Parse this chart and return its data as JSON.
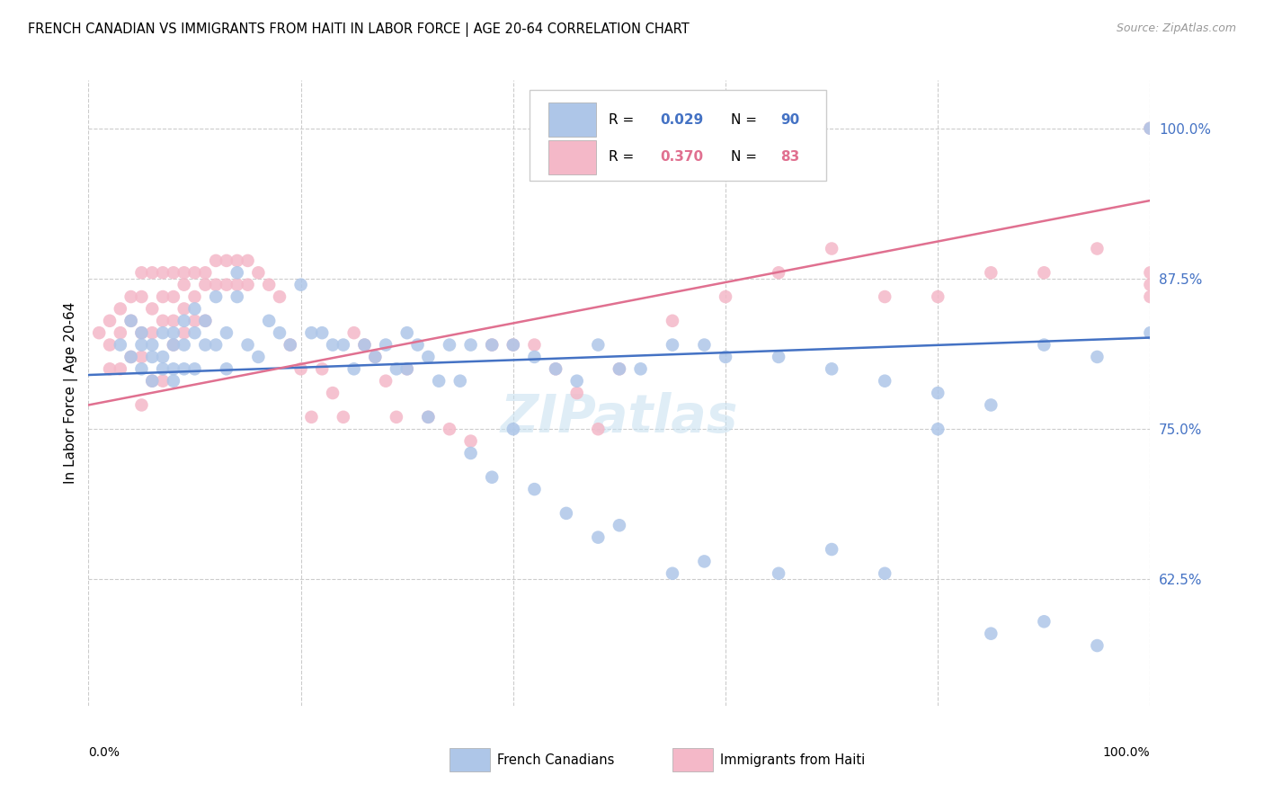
{
  "title": "FRENCH CANADIAN VS IMMIGRANTS FROM HAITI IN LABOR FORCE | AGE 20-64 CORRELATION CHART",
  "source": "Source: ZipAtlas.com",
  "ylabel": "In Labor Force | Age 20-64",
  "xlim": [
    0.0,
    1.0
  ],
  "ylim": [
    0.52,
    1.04
  ],
  "r_blue": 0.029,
  "n_blue": 90,
  "r_pink": 0.37,
  "n_pink": 83,
  "blue_color": "#aec6e8",
  "pink_color": "#f4b8c8",
  "blue_line_color": "#4472c4",
  "pink_line_color": "#e07090",
  "ytick_vals": [
    0.625,
    0.75,
    0.875,
    1.0
  ],
  "ytick_labels": [
    "62.5%",
    "75.0%",
    "87.5%",
    "100.0%"
  ],
  "blue_x": [
    0.03,
    0.04,
    0.04,
    0.05,
    0.05,
    0.05,
    0.06,
    0.06,
    0.06,
    0.07,
    0.07,
    0.07,
    0.08,
    0.08,
    0.08,
    0.08,
    0.09,
    0.09,
    0.09,
    0.1,
    0.1,
    0.1,
    0.11,
    0.11,
    0.12,
    0.12,
    0.13,
    0.13,
    0.14,
    0.14,
    0.15,
    0.16,
    0.17,
    0.18,
    0.19,
    0.2,
    0.21,
    0.22,
    0.23,
    0.24,
    0.25,
    0.26,
    0.27,
    0.28,
    0.29,
    0.3,
    0.3,
    0.31,
    0.32,
    0.33,
    0.34,
    0.35,
    0.36,
    0.38,
    0.4,
    0.42,
    0.44,
    0.46,
    0.48,
    0.5,
    0.52,
    0.55,
    0.58,
    0.6,
    0.65,
    0.7,
    0.75,
    0.8,
    0.85,
    0.9,
    0.95,
    1.0,
    0.32,
    0.36,
    0.38,
    0.4,
    0.42,
    0.45,
    0.48,
    0.5,
    0.55,
    0.58,
    0.65,
    0.7,
    0.75,
    0.8,
    0.85,
    0.9,
    0.95,
    1.0
  ],
  "blue_y": [
    0.82,
    0.84,
    0.81,
    0.82,
    0.8,
    0.83,
    0.82,
    0.81,
    0.79,
    0.83,
    0.81,
    0.8,
    0.83,
    0.82,
    0.8,
    0.79,
    0.84,
    0.82,
    0.8,
    0.85,
    0.83,
    0.8,
    0.84,
    0.82,
    0.86,
    0.82,
    0.83,
    0.8,
    0.88,
    0.86,
    0.82,
    0.81,
    0.84,
    0.83,
    0.82,
    0.87,
    0.83,
    0.83,
    0.82,
    0.82,
    0.8,
    0.82,
    0.81,
    0.82,
    0.8,
    0.83,
    0.8,
    0.82,
    0.81,
    0.79,
    0.82,
    0.79,
    0.82,
    0.82,
    0.82,
    0.81,
    0.8,
    0.79,
    0.82,
    0.8,
    0.8,
    0.82,
    0.82,
    0.81,
    0.81,
    0.8,
    0.79,
    0.78,
    0.77,
    0.82,
    0.81,
    0.83,
    0.76,
    0.73,
    0.71,
    0.75,
    0.7,
    0.68,
    0.66,
    0.67,
    0.63,
    0.64,
    0.63,
    0.65,
    0.63,
    0.75,
    0.58,
    0.59,
    0.57,
    1.0
  ],
  "pink_x": [
    0.01,
    0.02,
    0.02,
    0.02,
    0.03,
    0.03,
    0.03,
    0.04,
    0.04,
    0.04,
    0.05,
    0.05,
    0.05,
    0.05,
    0.05,
    0.06,
    0.06,
    0.06,
    0.06,
    0.07,
    0.07,
    0.07,
    0.07,
    0.08,
    0.08,
    0.08,
    0.08,
    0.09,
    0.09,
    0.09,
    0.09,
    0.1,
    0.1,
    0.1,
    0.11,
    0.11,
    0.11,
    0.12,
    0.12,
    0.13,
    0.13,
    0.14,
    0.14,
    0.15,
    0.15,
    0.16,
    0.17,
    0.18,
    0.19,
    0.2,
    0.21,
    0.22,
    0.23,
    0.24,
    0.25,
    0.26,
    0.27,
    0.28,
    0.29,
    0.3,
    0.32,
    0.34,
    0.36,
    0.38,
    0.4,
    0.42,
    0.44,
    0.46,
    0.48,
    0.5,
    0.55,
    0.6,
    0.65,
    0.7,
    0.75,
    0.8,
    0.85,
    0.9,
    0.95,
    1.0,
    1.0,
    1.0,
    1.0
  ],
  "pink_y": [
    0.83,
    0.84,
    0.82,
    0.8,
    0.85,
    0.83,
    0.8,
    0.86,
    0.84,
    0.81,
    0.88,
    0.86,
    0.83,
    0.81,
    0.77,
    0.88,
    0.85,
    0.83,
    0.79,
    0.88,
    0.86,
    0.84,
    0.79,
    0.88,
    0.86,
    0.84,
    0.82,
    0.88,
    0.87,
    0.85,
    0.83,
    0.88,
    0.86,
    0.84,
    0.88,
    0.87,
    0.84,
    0.89,
    0.87,
    0.89,
    0.87,
    0.89,
    0.87,
    0.89,
    0.87,
    0.88,
    0.87,
    0.86,
    0.82,
    0.8,
    0.76,
    0.8,
    0.78,
    0.76,
    0.83,
    0.82,
    0.81,
    0.79,
    0.76,
    0.8,
    0.76,
    0.75,
    0.74,
    0.82,
    0.82,
    0.82,
    0.8,
    0.78,
    0.75,
    0.8,
    0.84,
    0.86,
    0.88,
    0.9,
    0.86,
    0.86,
    0.88,
    0.88,
    0.9,
    0.88,
    0.87,
    0.86,
    1.0
  ],
  "blue_trendline": [
    0.795,
    0.826
  ],
  "pink_trendline": [
    0.77,
    0.94
  ],
  "watermark": "ZIPatlas"
}
